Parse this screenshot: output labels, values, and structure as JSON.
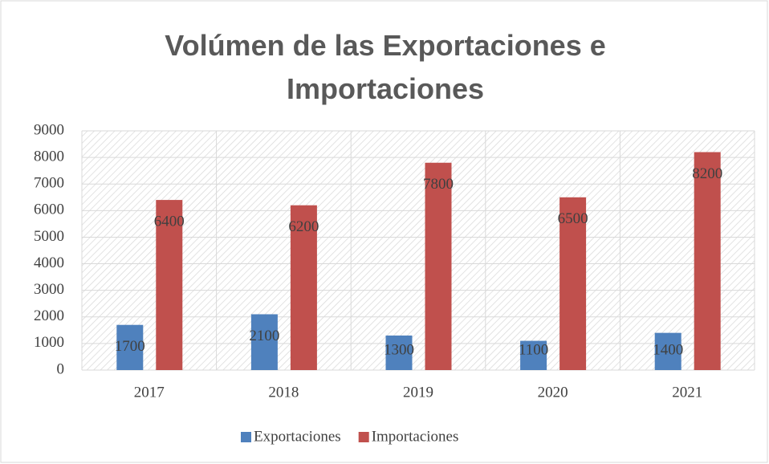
{
  "chart_data": {
    "type": "bar",
    "title": "Volúmen de las Exportaciones e Importaciones",
    "categories": [
      "2017",
      "2018",
      "2019",
      "2020",
      "2021"
    ],
    "series": [
      {
        "name": "Exportaciones",
        "color": "#4f81bd",
        "values": [
          1700,
          2100,
          1300,
          1100,
          1400
        ]
      },
      {
        "name": "Importaciones",
        "color": "#c0504d",
        "values": [
          6400,
          6200,
          7800,
          6500,
          8200
        ]
      }
    ],
    "ylim": [
      0,
      9000
    ],
    "yticks": [
      0,
      1000,
      2000,
      3000,
      4000,
      5000,
      6000,
      7000,
      8000,
      9000
    ],
    "grid": true,
    "legend": "bottom"
  }
}
